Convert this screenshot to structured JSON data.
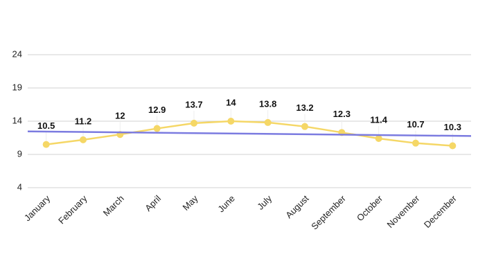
{
  "chart_data": {
    "type": "line",
    "categories": [
      "January",
      "February",
      "March",
      "April",
      "May",
      "June",
      "July",
      "August",
      "September",
      "October",
      "November",
      "December"
    ],
    "series": [
      {
        "color": "#f5d766",
        "values": [
          10.5,
          11.2,
          12,
          12.9,
          13.7,
          14,
          13.8,
          13.2,
          12.3,
          11.4,
          10.7,
          10.3
        ]
      }
    ],
    "trendline": {
      "color": "#7b7be0",
      "values": [
        12.44,
        11.8
      ]
    },
    "ylim": [
      4,
      24
    ],
    "yticks": [
      4,
      9,
      14,
      19,
      24
    ],
    "grid": true
  }
}
